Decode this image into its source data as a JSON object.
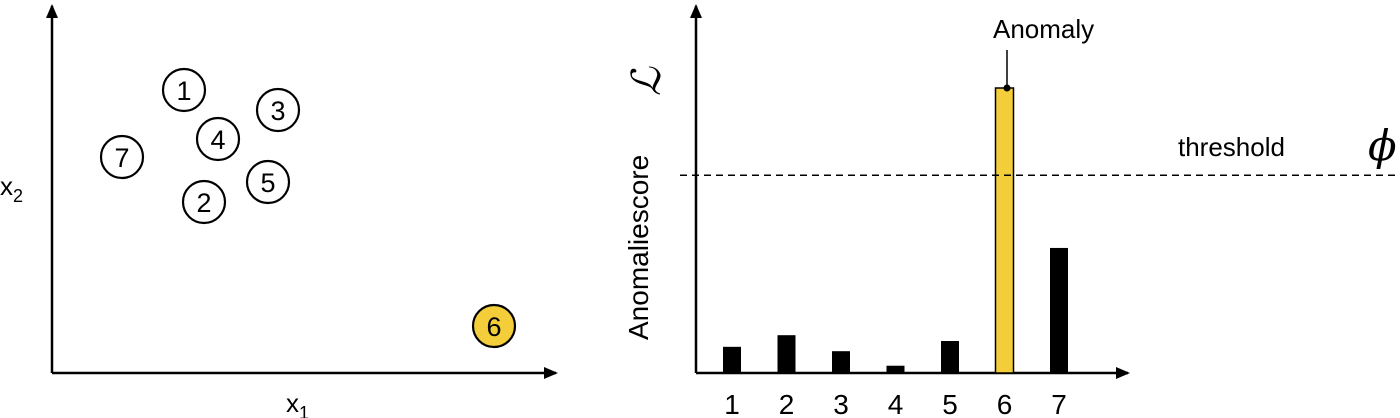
{
  "scatter": {
    "x_label": "x",
    "x_sub": "1",
    "y_label": "x",
    "y_sub": "2",
    "points": [
      {
        "label": "1",
        "highlight": false
      },
      {
        "label": "2",
        "highlight": false
      },
      {
        "label": "3",
        "highlight": false
      },
      {
        "label": "4",
        "highlight": false
      },
      {
        "label": "5",
        "highlight": false
      },
      {
        "label": "6",
        "highlight": true
      },
      {
        "label": "7",
        "highlight": false
      }
    ]
  },
  "bars": {
    "y_label": "Anomaliescore",
    "y_symbol": "ℒ",
    "threshold_label": "threshold",
    "threshold_symbol": "ϕ",
    "anomaly_label": "Anomaly"
  },
  "chart_data": {
    "type": "bar",
    "categories": [
      "1",
      "2",
      "3",
      "4",
      "5",
      "6",
      "7"
    ],
    "values": [
      0.09,
      0.13,
      0.075,
      0.025,
      0.11,
      0.98,
      0.43
    ],
    "threshold": 0.68,
    "ylim": [
      0,
      1.2
    ],
    "highlight_index": 5,
    "ylabel": "Anomaliescore ℒ"
  },
  "colors": {
    "highlight": "#f4cd3a",
    "bar": "#000000",
    "axis": "#000000"
  }
}
